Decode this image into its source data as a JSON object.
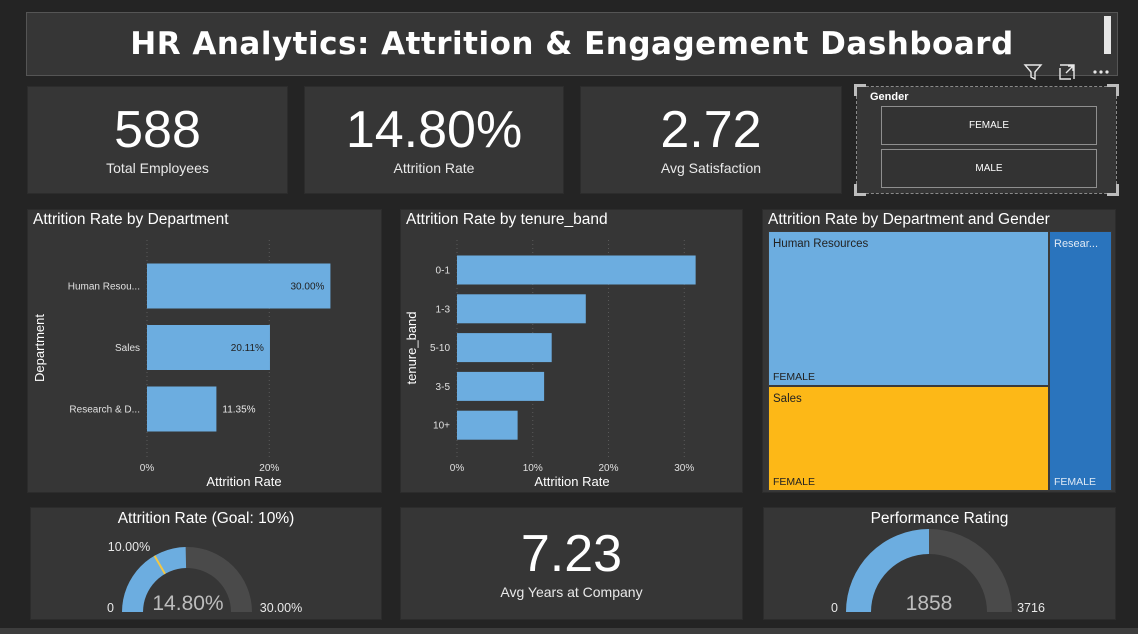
{
  "header": {
    "title": "HR Analytics: Attrition & Engagement Dashboard"
  },
  "toolbar": {
    "icons": [
      "filter-icon",
      "focus-mode-icon",
      "more-options-icon"
    ]
  },
  "kpis": {
    "employees": {
      "value": "588",
      "label": "Total Employees"
    },
    "attrition": {
      "value": "14.80%",
      "label": "Attrition Rate"
    },
    "satisfaction": {
      "value": "2.72",
      "label": "Avg Satisfaction"
    },
    "tenure": {
      "value": "7.23",
      "label": "Avg Years at Company"
    }
  },
  "slicer": {
    "title": "Gender",
    "options": [
      "FEMALE",
      "MALE"
    ]
  },
  "colors": {
    "bar": "#6cade0",
    "treemap_hr": "#6cade0",
    "treemap_sales": "#fdb817",
    "treemap_research": "#2a74bd",
    "background": "#363636"
  },
  "chart_data": [
    {
      "type": "bar",
      "orientation": "horizontal",
      "title": "Attrition Rate by Department",
      "xlabel": "Attrition Rate",
      "ylabel": "Department",
      "categories": [
        "Human Resou...",
        "Sales",
        "Research & D..."
      ],
      "values": [
        30.0,
        20.11,
        11.35
      ],
      "data_labels": [
        "30.00%",
        "20.11%",
        "11.35%"
      ],
      "x_ticks": [
        "0%",
        "20%"
      ],
      "xlim": [
        0,
        35
      ]
    },
    {
      "type": "bar",
      "orientation": "horizontal",
      "title": "Attrition Rate by tenure_band",
      "xlabel": "Attrition Rate",
      "ylabel": "tenure_band",
      "categories": [
        "0-1",
        "1-3",
        "5-10",
        "3-5",
        "10+"
      ],
      "values": [
        31.5,
        17,
        12.5,
        11.5,
        8
      ],
      "x_ticks": [
        "0%",
        "10%",
        "20%",
        "30%"
      ],
      "xlim": [
        0,
        33
      ]
    },
    {
      "type": "treemap",
      "title": "Attrition Rate by Department and Gender",
      "nodes": [
        {
          "department": "Human Resources",
          "gender": "FEMALE"
        },
        {
          "department": "Sales",
          "gender": "FEMALE"
        },
        {
          "department": "Resear...",
          "gender": "FEMALE"
        }
      ]
    },
    {
      "type": "gauge",
      "title": "Attrition Rate (Goal: 10%)",
      "value": 14.8,
      "value_label": "14.80%",
      "min": 0,
      "min_label": "0",
      "max": 30.0,
      "max_label": "30.00%",
      "target": 10.0,
      "target_label": "10.00%"
    },
    {
      "type": "gauge",
      "title": "Performance Rating",
      "value": 1858,
      "value_label": "1858",
      "min": 0,
      "min_label": "0",
      "max": 3716,
      "max_label": "3716"
    }
  ]
}
